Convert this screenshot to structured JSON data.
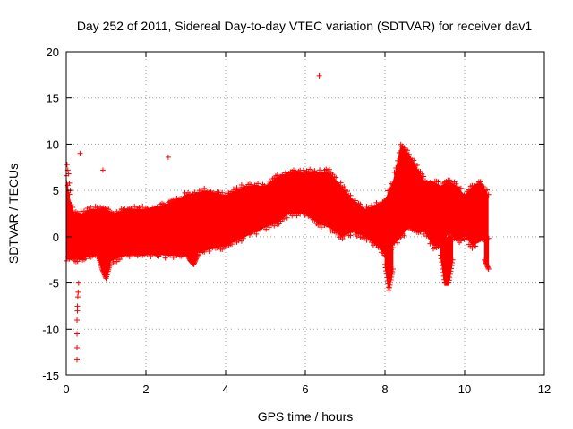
{
  "chart_data": {
    "type": "scatter",
    "title": "Day 252 of 2011, Sidereal Day-to-day VTEC variation (SDTVAR) for receiver dav1",
    "xlabel": "GPS time / hours",
    "ylabel": "SDTVAR / TECUs",
    "xlim": [
      0,
      12
    ],
    "ylim": [
      -15,
      20
    ],
    "xticks": [
      0,
      2,
      4,
      6,
      8,
      10,
      12
    ],
    "yticks": [
      -15,
      -10,
      -5,
      0,
      5,
      10,
      15,
      20
    ],
    "xtick_labels": [
      "0",
      "2",
      "4",
      "6",
      "8",
      "10",
      "12"
    ],
    "ytick_labels": [
      "-15",
      "-10",
      "-5",
      "0",
      "5",
      "10",
      "15",
      "20"
    ],
    "grid": true,
    "marker": "+",
    "color": "#ff0000",
    "series": [
      {
        "name": "dav1",
        "envelope": {
          "x": [
            0.0,
            0.1,
            0.2,
            0.4,
            0.6,
            0.8,
            1.0,
            1.2,
            1.5,
            2.0,
            2.5,
            3.0,
            3.5,
            4.0,
            4.5,
            5.0,
            5.3,
            5.6,
            6.0,
            6.3,
            6.6,
            6.9,
            7.2,
            7.5,
            7.8,
            8.0,
            8.2,
            8.4,
            8.6,
            8.8,
            9.0,
            9.2,
            9.4,
            9.6,
            9.8,
            10.0,
            10.2,
            10.4,
            10.6
          ],
          "low": [
            -2.5,
            -2.5,
            -2.5,
            -2.5,
            -2.0,
            -2.0,
            -3.0,
            -2.5,
            -2.0,
            -2.0,
            -2.0,
            -2.0,
            -1.5,
            -1.0,
            0.0,
            1.0,
            1.5,
            2.5,
            2.5,
            1.5,
            1.0,
            0.0,
            0.5,
            0.0,
            -1.0,
            -2.0,
            -1.0,
            0.0,
            1.0,
            0.5,
            0.5,
            -1.0,
            -1.0,
            0.5,
            -0.5,
            0.0,
            -1.0,
            -0.5,
            0.0
          ],
          "high": [
            6.5,
            4.0,
            2.5,
            2.5,
            3.0,
            3.0,
            3.0,
            2.5,
            3.0,
            3.0,
            3.5,
            4.5,
            5.0,
            4.5,
            5.5,
            5.5,
            6.5,
            7.0,
            7.0,
            7.0,
            7.0,
            5.5,
            4.0,
            3.0,
            3.5,
            4.0,
            6.0,
            10.0,
            9.0,
            7.5,
            6.0,
            6.0,
            5.5,
            6.0,
            5.5,
            4.5,
            5.5,
            6.0,
            4.5
          ]
        },
        "dips": [
          {
            "x": [
              0.8,
              0.9,
              1.0,
              1.1
            ],
            "y": [
              -2.0,
              -3.5,
              -4.5,
              -3.0
            ]
          },
          {
            "x": [
              3.0,
              3.1,
              3.2,
              3.3
            ],
            "y": [
              -1.5,
              -2.5,
              -3.0,
              -2.0
            ]
          },
          {
            "x": [
              8.0,
              8.1,
              8.2
            ],
            "y": [
              -3.0,
              -5.8,
              -3.5
            ]
          },
          {
            "x": [
              9.4,
              9.5,
              9.6,
              9.7
            ],
            "y": [
              -2.0,
              -5.0,
              -5.0,
              -2.5
            ]
          },
          {
            "x": [
              10.5,
              10.6
            ],
            "y": [
              -2.5,
              -3.5
            ]
          }
        ],
        "outliers": [
          {
            "x": [
              0.27,
              0.27,
              0.27,
              0.27,
              0.28,
              0.28,
              0.29,
              0.3,
              0.31
            ],
            "y": [
              -13.3,
              -12.0,
              -10.5,
              -9.0,
              -8.0,
              -7.5,
              -6.5,
              -6.0,
              -5.0
            ]
          },
          {
            "x": [
              0.02,
              0.04,
              0.06,
              0.08,
              0.1
            ],
            "y": [
              7.8,
              7.2,
              6.8,
              5.8,
              5.0
            ]
          },
          {
            "x": [
              0.35,
              0.92,
              2.56,
              6.35
            ],
            "y": [
              9.0,
              7.2,
              8.6,
              17.4
            ]
          }
        ]
      }
    ]
  }
}
